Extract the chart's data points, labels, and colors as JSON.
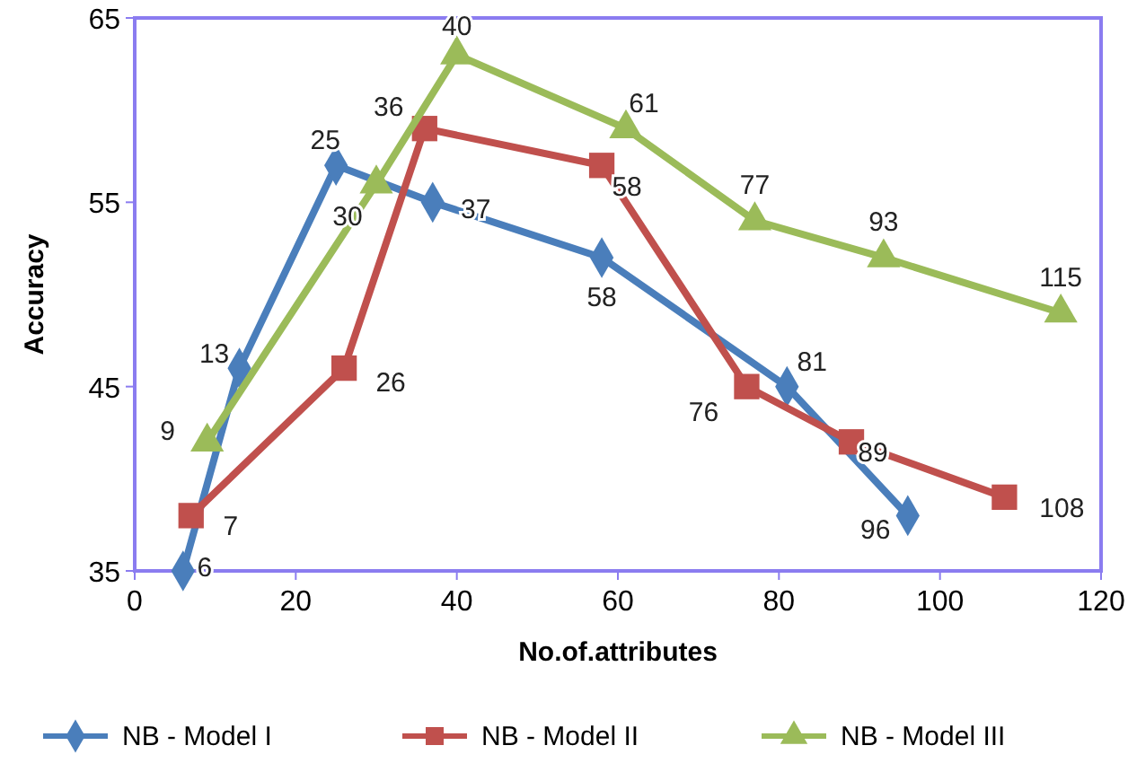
{
  "chart_data": {
    "type": "line",
    "xlabel": "No.of.attributes",
    "ylabel": "Accuracy",
    "xlim": [
      0,
      120
    ],
    "xticks": [
      0,
      20,
      40,
      60,
      80,
      100,
      120
    ],
    "ylim": [
      35,
      65
    ],
    "yticks": [
      35,
      45,
      55,
      65
    ],
    "grid": false,
    "legend": "bottom",
    "series": [
      {
        "name": "NB - Model I",
        "color": "#4a7ebb",
        "marker": "diamond",
        "x": [
          6,
          13,
          25,
          37,
          58,
          81,
          96
        ],
        "values": [
          35,
          46,
          57,
          55,
          52,
          45,
          38
        ]
      },
      {
        "name": "NB - Model II",
        "color": "#c0504d",
        "marker": "square",
        "x": [
          7,
          26,
          36,
          58,
          76,
          89,
          108
        ],
        "values": [
          38,
          46,
          59,
          57,
          45,
          42,
          39
        ]
      },
      {
        "name": "NB - Model III",
        "color": "#9bbb59",
        "marker": "triangle",
        "x": [
          9,
          30,
          40,
          61,
          77,
          93,
          115
        ],
        "values": [
          42,
          56,
          63,
          59,
          54,
          52,
          49
        ]
      }
    ],
    "annotations": [
      {
        "text": "6",
        "x": 6,
        "y": 35
      },
      {
        "text": "13",
        "x": 13,
        "y": 46
      },
      {
        "text": "25",
        "x": 25,
        "y": 57
      },
      {
        "text": "37",
        "x": 37,
        "y": 55
      },
      {
        "text": "58",
        "x": 58,
        "y": 52
      },
      {
        "text": "81",
        "x": 81,
        "y": 45
      },
      {
        "text": "96",
        "x": 96,
        "y": 38
      },
      {
        "text": "7",
        "x": 7,
        "y": 38
      },
      {
        "text": "26",
        "x": 26,
        "y": 46
      },
      {
        "text": "36",
        "x": 36,
        "y": 59
      },
      {
        "text": "58",
        "x": 58,
        "y": 57
      },
      {
        "text": "76",
        "x": 76,
        "y": 45
      },
      {
        "text": "89",
        "x": 89,
        "y": 42
      },
      {
        "text": "108",
        "x": 108,
        "y": 39
      },
      {
        "text": "9",
        "x": 9,
        "y": 42
      },
      {
        "text": "30",
        "x": 30,
        "y": 56
      },
      {
        "text": "40",
        "x": 40,
        "y": 63
      },
      {
        "text": "61",
        "x": 61,
        "y": 59
      },
      {
        "text": "77",
        "x": 77,
        "y": 54
      },
      {
        "text": "93",
        "x": 93,
        "y": 52
      },
      {
        "text": "115",
        "x": 115,
        "y": 49
      }
    ]
  }
}
